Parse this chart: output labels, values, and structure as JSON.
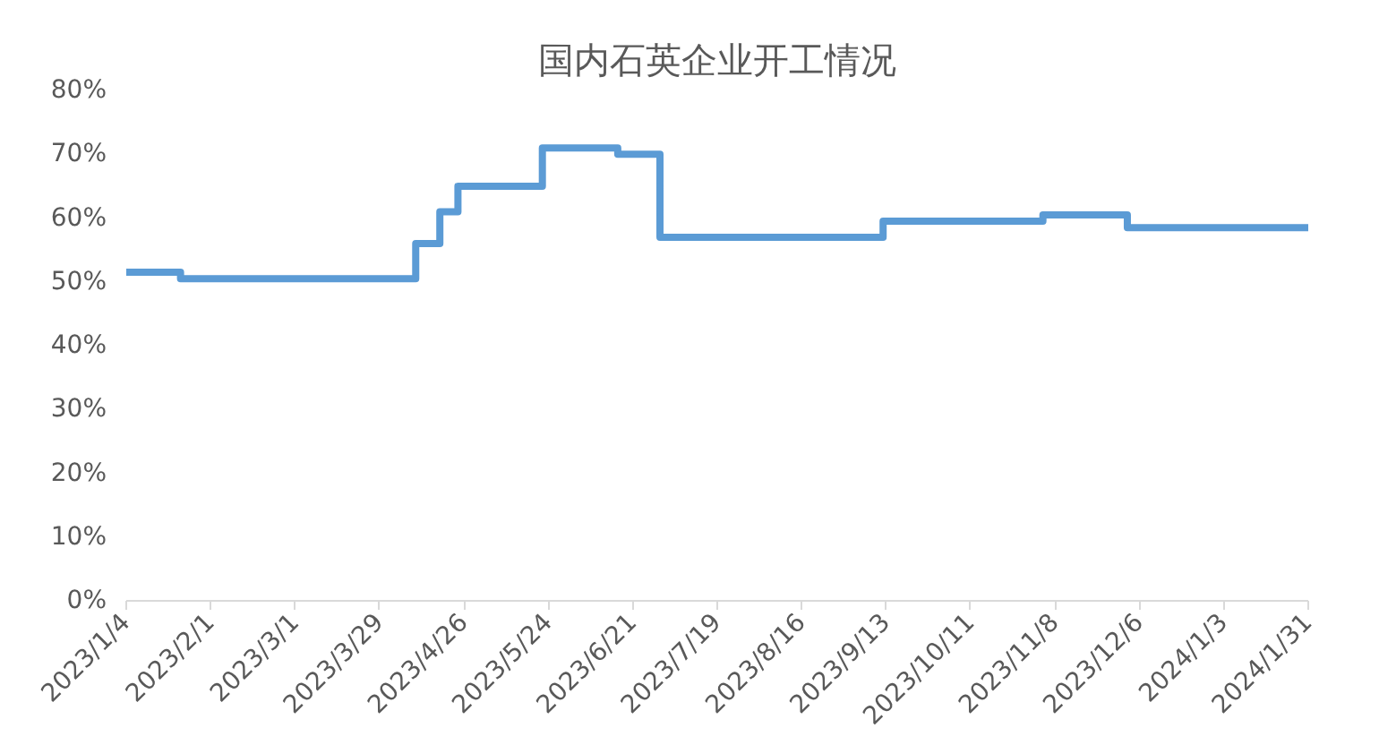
{
  "chart_data": {
    "type": "step",
    "title": "国内石英企业开工情况",
    "x": [
      "2023-01-04",
      "2023-01-22",
      "2023-04-10",
      "2023-04-18",
      "2023-04-24",
      "2023-05-22",
      "2023-06-16",
      "2023-06-30",
      "2023-09-12",
      "2023-11-04",
      "2023-12-02",
      "2024-01-31"
    ],
    "series": [
      {
        "color": "#5b9bd5",
        "values": [
          51.5,
          50.5,
          56,
          61,
          65,
          71,
          70,
          57,
          59.5,
          60.5,
          58.5,
          58.5
        ]
      }
    ],
    "ylim": [
      0,
      80
    ],
    "yticks": [
      {
        "value": 0,
        "label": "0%"
      },
      {
        "value": 10,
        "label": "10%"
      },
      {
        "value": 20,
        "label": "20%"
      },
      {
        "value": 30,
        "label": "30%"
      },
      {
        "value": 40,
        "label": "40%"
      },
      {
        "value": 50,
        "label": "50%"
      },
      {
        "value": 60,
        "label": "60%"
      },
      {
        "value": 70,
        "label": "70%"
      },
      {
        "value": 80,
        "label": "80%"
      }
    ],
    "xlim": [
      "2023-01-04",
      "2024-01-31"
    ],
    "xticks": [
      {
        "value": "2023-01-04",
        "label": "2023/1/4"
      },
      {
        "value": "2023-02-01",
        "label": "2023/2/1"
      },
      {
        "value": "2023-03-01",
        "label": "2023/3/1"
      },
      {
        "value": "2023-03-29",
        "label": "2023/3/29"
      },
      {
        "value": "2023-04-26",
        "label": "2023/4/26"
      },
      {
        "value": "2023-05-24",
        "label": "2023/5/24"
      },
      {
        "value": "2023-06-21",
        "label": "2023/6/21"
      },
      {
        "value": "2023-07-19",
        "label": "2023/7/19"
      },
      {
        "value": "2023-08-16",
        "label": "2023/8/16"
      },
      {
        "value": "2023-09-13",
        "label": "2023/9/13"
      },
      {
        "value": "2023-10-11",
        "label": "2023/10/11"
      },
      {
        "value": "2023-11-08",
        "label": "2023/11/8"
      },
      {
        "value": "2023-12-06",
        "label": "2023/12/6"
      },
      {
        "value": "2024-01-03",
        "label": "2024/1/3"
      },
      {
        "value": "2024-01-31",
        "label": "2024/1/31"
      }
    ],
    "grid": false
  }
}
